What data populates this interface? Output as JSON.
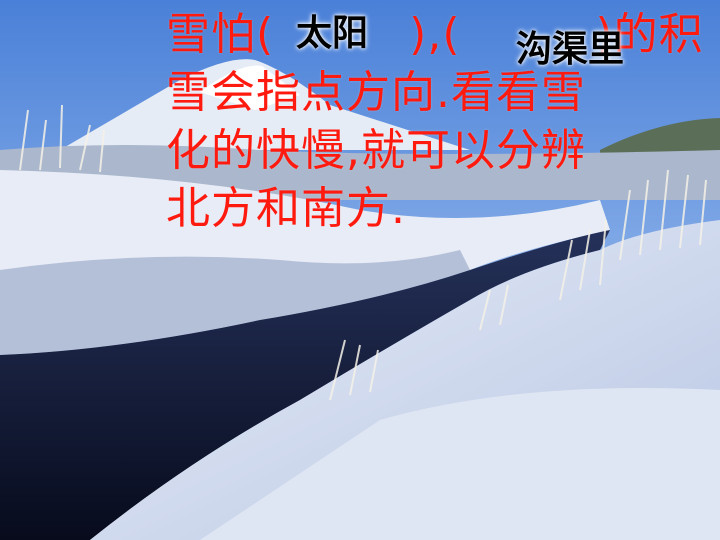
{
  "slide": {
    "lines": [
      "雪怕(　　　),(　　　)的积",
      "雪会指点方向.看看雪",
      "化的快慢,就可以分辨",
      "北方和南方."
    ],
    "answers": [
      "太阳",
      "沟渠里"
    ],
    "colors": {
      "text": "#ff1a0f",
      "answer": "#000000"
    }
  }
}
